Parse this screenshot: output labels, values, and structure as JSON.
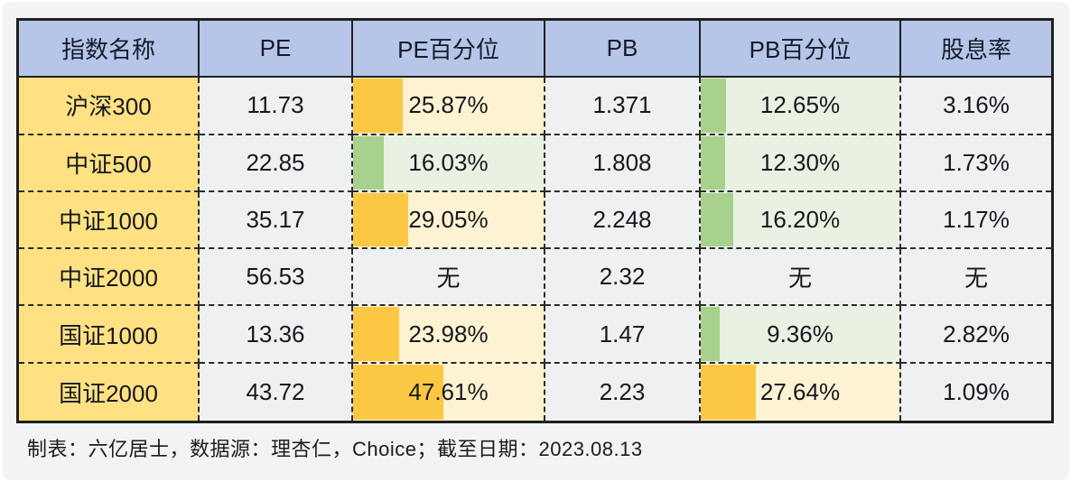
{
  "colors": {
    "header_bg": "#b5c6e8",
    "index_column_bg": "#ffe183",
    "plain_cell_bg": "#eff0f2",
    "warm_bar": "#fcc843",
    "warm_cell_bg": "#fdf3d3",
    "cool_bar": "#a9d18e",
    "cool_cell_bg": "#e9f2e2",
    "border": "#1f1f1f",
    "card_bg": "#f2f3f4"
  },
  "table": {
    "headers": [
      "指数名称",
      "PE",
      "PE百分位",
      "PB",
      "PB百分位",
      "股息率"
    ],
    "rows": [
      {
        "name": "沪深300",
        "pe": "11.73",
        "pe_pct_label": "25.87%",
        "pe_pct_value": 25.87,
        "pe_tone": "warm",
        "pb": "1.371",
        "pb_pct_label": "12.65%",
        "pb_pct_value": 12.65,
        "pb_tone": "cool",
        "div_yield": "3.16%"
      },
      {
        "name": "中证500",
        "pe": "22.85",
        "pe_pct_label": "16.03%",
        "pe_pct_value": 16.03,
        "pe_tone": "cool",
        "pb": "1.808",
        "pb_pct_label": "12.30%",
        "pb_pct_value": 12.3,
        "pb_tone": "cool",
        "div_yield": "1.73%"
      },
      {
        "name": "中证1000",
        "pe": "35.17",
        "pe_pct_label": "29.05%",
        "pe_pct_value": 29.05,
        "pe_tone": "warm",
        "pb": "2.248",
        "pb_pct_label": "16.20%",
        "pb_pct_value": 16.2,
        "pb_tone": "cool",
        "div_yield": "1.17%"
      },
      {
        "name": "中证2000",
        "pe": "56.53",
        "pe_pct_label": "无",
        "pe_pct_value": null,
        "pe_tone": "none",
        "pb": "2.32",
        "pb_pct_label": "无",
        "pb_pct_value": null,
        "pb_tone": "none",
        "div_yield": "无"
      },
      {
        "name": "国证1000",
        "pe": "13.36",
        "pe_pct_label": "23.98%",
        "pe_pct_value": 23.98,
        "pe_tone": "warm",
        "pb": "1.47",
        "pb_pct_label": "9.36%",
        "pb_pct_value": 9.36,
        "pb_tone": "cool",
        "div_yield": "2.82%"
      },
      {
        "name": "国证2000",
        "pe": "43.72",
        "pe_pct_label": "47.61%",
        "pe_pct_value": 47.61,
        "pe_tone": "warm",
        "pb": "2.23",
        "pb_pct_label": "27.64%",
        "pb_pct_value": 27.64,
        "pb_tone": "warm",
        "div_yield": "1.09%"
      }
    ]
  },
  "footer": {
    "text": "制表：六亿居士，数据源：理杏仁，Choice；截至日期：2023.08.13"
  },
  "chart_data": {
    "type": "table",
    "title": "指数估值表",
    "columns": [
      "指数名称",
      "PE",
      "PE百分位",
      "PB",
      "PB百分位",
      "股息率"
    ],
    "rows": [
      [
        "沪深300",
        11.73,
        "25.87%",
        1.371,
        "12.65%",
        "3.16%"
      ],
      [
        "中证500",
        22.85,
        "16.03%",
        1.808,
        "12.30%",
        "1.73%"
      ],
      [
        "中证1000",
        35.17,
        "29.05%",
        2.248,
        "16.20%",
        "1.17%"
      ],
      [
        "中证2000",
        56.53,
        "无",
        2.32,
        "无",
        "无"
      ],
      [
        "国证1000",
        13.36,
        "23.98%",
        1.47,
        "9.36%",
        "2.82%"
      ],
      [
        "国证2000",
        43.72,
        "47.61%",
        2.23,
        "27.64%",
        "1.09%"
      ]
    ],
    "data_bars": {
      "note": "PE百分位 and PB百分位 cells contain horizontal data bars whose width is proportional to the percentile value; orange bars with pale-yellow cell fill for higher percentiles, green bars with pale-green cell fill for lower percentiles",
      "pe_percentile_bar_colors": [
        "warm",
        "cool",
        "warm",
        null,
        "warm",
        "warm"
      ],
      "pb_percentile_bar_colors": [
        "cool",
        "cool",
        "cool",
        null,
        "cool",
        "warm"
      ]
    },
    "annotations": [
      "制表：六亿居士，数据源：理杏仁，Choice；截至日期：2023.08.13"
    ]
  }
}
